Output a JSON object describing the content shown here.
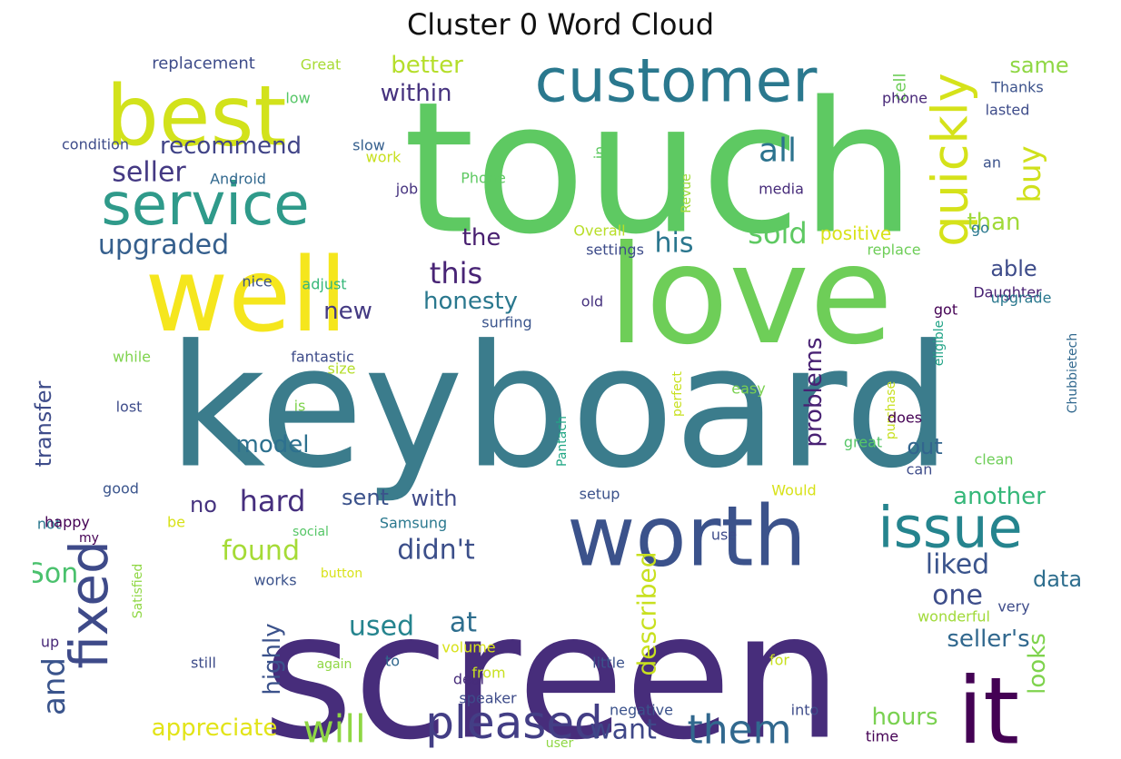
{
  "title": "Cluster 0 Word Cloud",
  "colors": {
    "background": "#ffffff",
    "title": "#111111"
  },
  "words": [
    {
      "text": "touch",
      "color": "#5ec962",
      "vertical": false
    },
    {
      "text": "keyboard",
      "color": "#3b7c8c",
      "vertical": false
    },
    {
      "text": "screen",
      "color": "#472d7b",
      "vertical": false
    },
    {
      "text": "love",
      "color": "#6ece58",
      "vertical": false
    },
    {
      "text": "well",
      "color": "#f5e61d",
      "vertical": false
    },
    {
      "text": "best",
      "color": "#d2e21b",
      "vertical": false
    },
    {
      "text": "worth",
      "color": "#3b528b",
      "vertical": false
    },
    {
      "text": "customer",
      "color": "#2a788e",
      "vertical": false
    },
    {
      "text": "service",
      "color": "#2f9a8a",
      "vertical": false
    },
    {
      "text": "issue",
      "color": "#25848e",
      "vertical": false
    },
    {
      "text": "it",
      "color": "#440154",
      "vertical": false
    },
    {
      "text": "quickly",
      "color": "#d5e21a",
      "vertical": true
    },
    {
      "text": "fixed",
      "color": "#3e4a89",
      "vertical": true
    },
    {
      "text": "pleased",
      "color": "#433e85",
      "vertical": false
    },
    {
      "text": "will",
      "color": "#8fd744",
      "vertical": false
    },
    {
      "text": "them",
      "color": "#31688e",
      "vertical": false
    },
    {
      "text": "and",
      "color": "#3a548c",
      "vertical": true
    },
    {
      "text": "buy",
      "color": "#d0e11c",
      "vertical": true
    },
    {
      "text": "all",
      "color": "#2c738e",
      "vertical": false
    },
    {
      "text": "this",
      "color": "#482475",
      "vertical": false
    },
    {
      "text": "seller",
      "color": "#443983",
      "vertical": false
    },
    {
      "text": "upgraded",
      "color": "#355f8d",
      "vertical": false
    },
    {
      "text": "sold",
      "color": "#5ec962",
      "vertical": false
    },
    {
      "text": "his",
      "color": "#2a768e",
      "vertical": false
    },
    {
      "text": "hard",
      "color": "#462f7e",
      "vertical": false
    },
    {
      "text": "found",
      "color": "#a5db36",
      "vertical": false
    },
    {
      "text": "didn't",
      "color": "#3c4f8a",
      "vertical": false
    },
    {
      "text": "Son",
      "color": "#4ac16d",
      "vertical": false
    },
    {
      "text": "used",
      "color": "#25848e",
      "vertical": false
    },
    {
      "text": "at",
      "color": "#2e6e8e",
      "vertical": false
    },
    {
      "text": "want",
      "color": "#3f4788",
      "vertical": false
    },
    {
      "text": "appreciate",
      "color": "#e2e418",
      "vertical": false
    },
    {
      "text": "liked",
      "color": "#3a548c",
      "vertical": false
    },
    {
      "text": "one",
      "color": "#3d4d8a",
      "vertical": false
    },
    {
      "text": "seller's",
      "color": "#31688e",
      "vertical": false
    },
    {
      "text": "recommend",
      "color": "#414487",
      "vertical": false
    },
    {
      "text": "within",
      "color": "#46327e",
      "vertical": false
    },
    {
      "text": "better",
      "color": "#b5de2b",
      "vertical": false
    },
    {
      "text": "honesty",
      "color": "#2a788e",
      "vertical": false
    },
    {
      "text": "model",
      "color": "#2d708e",
      "vertical": false
    },
    {
      "text": "problems",
      "color": "#482173",
      "vertical": true
    },
    {
      "text": "described",
      "color": "#c8e020",
      "vertical": true
    },
    {
      "text": "highly",
      "color": "#3b528b",
      "vertical": true
    },
    {
      "text": "hours",
      "color": "#7ad151",
      "vertical": false
    },
    {
      "text": "another",
      "color": "#35b779",
      "vertical": false
    },
    {
      "text": "looks",
      "color": "#7fd34e",
      "vertical": true
    },
    {
      "text": "data",
      "color": "#2e6e8e",
      "vertical": false
    },
    {
      "text": "the",
      "color": "#481f70",
      "vertical": false
    },
    {
      "text": "than",
      "color": "#a0da39",
      "vertical": false
    },
    {
      "text": "able",
      "color": "#3e4c8a",
      "vertical": false
    },
    {
      "text": "out",
      "color": "#32658e",
      "vertical": false
    },
    {
      "text": "same",
      "color": "#8fd744",
      "vertical": false
    },
    {
      "text": "with",
      "color": "#3e4989",
      "vertical": false
    },
    {
      "text": "sent",
      "color": "#3b528b",
      "vertical": false
    },
    {
      "text": "no",
      "color": "#46337f",
      "vertical": false
    },
    {
      "text": "new",
      "color": "#443a83",
      "vertical": false
    },
    {
      "text": "transfer",
      "color": "#3e4c8a",
      "vertical": true
    },
    {
      "text": "positive",
      "color": "#d8e219",
      "vertical": false
    },
    {
      "text": "replacement",
      "color": "#3e4c8a",
      "vertical": false
    },
    {
      "text": "Great",
      "color": "#a8db34",
      "vertical": false
    },
    {
      "text": "low",
      "color": "#56c667",
      "vertical": false
    },
    {
      "text": "condition",
      "color": "#3e4c8a",
      "vertical": false
    },
    {
      "text": "slow",
      "color": "#355f8d",
      "vertical": false
    },
    {
      "text": "work",
      "color": "#c8e020",
      "vertical": false
    },
    {
      "text": "in",
      "color": "#5ec962",
      "vertical": true
    },
    {
      "text": "Android",
      "color": "#31688e",
      "vertical": false
    },
    {
      "text": "Phone",
      "color": "#5ec962",
      "vertical": false
    },
    {
      "text": "job",
      "color": "#46337f",
      "vertical": false
    },
    {
      "text": "Revue",
      "color": "#a0da39",
      "vertical": true
    },
    {
      "text": "media",
      "color": "#472c7a",
      "vertical": false
    },
    {
      "text": "cell",
      "color": "#6ece58",
      "vertical": true
    },
    {
      "text": "phone",
      "color": "#482878",
      "vertical": false
    },
    {
      "text": "Thanks",
      "color": "#3b528b",
      "vertical": false
    },
    {
      "text": "lasted",
      "color": "#3e4c8a",
      "vertical": false
    },
    {
      "text": "an",
      "color": "#3b528b",
      "vertical": false
    },
    {
      "text": "go",
      "color": "#2a788e",
      "vertical": false
    },
    {
      "text": "got",
      "color": "#440154",
      "vertical": false
    },
    {
      "text": "Daughter",
      "color": "#482173",
      "vertical": false
    },
    {
      "text": "Overall",
      "color": "#b8de29",
      "vertical": false
    },
    {
      "text": "settings",
      "color": "#3e4c8a",
      "vertical": false
    },
    {
      "text": "replace",
      "color": "#6ece58",
      "vertical": false
    },
    {
      "text": "old",
      "color": "#46327e",
      "vertical": false
    },
    {
      "text": "adjust",
      "color": "#35b779",
      "vertical": false
    },
    {
      "text": "nice",
      "color": "#3b528b",
      "vertical": false
    },
    {
      "text": "surfing",
      "color": "#3a548c",
      "vertical": false
    },
    {
      "text": "upgrade",
      "color": "#2a788e",
      "vertical": false
    },
    {
      "text": "Chubbietech",
      "color": "#31688e",
      "vertical": true
    },
    {
      "text": "eligible",
      "color": "#20a386",
      "vertical": true
    },
    {
      "text": "while",
      "color": "#7fd34e",
      "vertical": false
    },
    {
      "text": "fantastic",
      "color": "#3e4c8a",
      "vertical": false
    },
    {
      "text": "size",
      "color": "#b5de2b",
      "vertical": false
    },
    {
      "text": "lost",
      "color": "#3e4c8a",
      "vertical": false
    },
    {
      "text": "is",
      "color": "#7fd34e",
      "vertical": false
    },
    {
      "text": "perfect",
      "color": "#c8e020",
      "vertical": true
    },
    {
      "text": "Pantach",
      "color": "#22a785",
      "vertical": true
    },
    {
      "text": "easy",
      "color": "#7ad151",
      "vertical": false
    },
    {
      "text": "purchase",
      "color": "#c8e020",
      "vertical": true
    },
    {
      "text": "great",
      "color": "#56c667",
      "vertical": false
    },
    {
      "text": "does",
      "color": "#440154",
      "vertical": false
    },
    {
      "text": "clean",
      "color": "#6ece58",
      "vertical": false
    },
    {
      "text": "can",
      "color": "#3e4c8a",
      "vertical": false
    },
    {
      "text": "not",
      "color": "#2a788e",
      "vertical": false
    },
    {
      "text": "good",
      "color": "#3a548c",
      "vertical": false
    },
    {
      "text": "happy",
      "color": "#440154",
      "vertical": false
    },
    {
      "text": "be",
      "color": "#d8e219",
      "vertical": false
    },
    {
      "text": "my",
      "color": "#440154",
      "vertical": false
    },
    {
      "text": "social",
      "color": "#56c667",
      "vertical": false
    },
    {
      "text": "Samsung",
      "color": "#2a788e",
      "vertical": false
    },
    {
      "text": "setup",
      "color": "#3b528b",
      "vertical": false
    },
    {
      "text": "Would",
      "color": "#d8e219",
      "vertical": false
    },
    {
      "text": "use",
      "color": "#3e4c8a",
      "vertical": false
    },
    {
      "text": "works",
      "color": "#3b528b",
      "vertical": false
    },
    {
      "text": "button",
      "color": "#d8e219",
      "vertical": false
    },
    {
      "text": "Satisfied",
      "color": "#8fd744",
      "vertical": true
    },
    {
      "text": "very",
      "color": "#3e4c8a",
      "vertical": false
    },
    {
      "text": "wonderful",
      "color": "#a0da39",
      "vertical": false
    },
    {
      "text": "up",
      "color": "#482878",
      "vertical": false
    },
    {
      "text": "still",
      "color": "#3e4c8a",
      "vertical": false
    },
    {
      "text": "again",
      "color": "#8fd744",
      "vertical": false
    },
    {
      "text": "to",
      "color": "#31688e",
      "vertical": false
    },
    {
      "text": "volume",
      "color": "#d8e219",
      "vertical": false
    },
    {
      "text": "little",
      "color": "#3b528b",
      "vertical": false
    },
    {
      "text": "for",
      "color": "#c8e020",
      "vertical": false
    },
    {
      "text": "deal",
      "color": "#472c7a",
      "vertical": false
    },
    {
      "text": "from",
      "color": "#c8e020",
      "vertical": false
    },
    {
      "text": "speaker",
      "color": "#3e4c8a",
      "vertical": false
    },
    {
      "text": "negative",
      "color": "#3b528b",
      "vertical": false
    },
    {
      "text": "into",
      "color": "#3e4c8a",
      "vertical": false
    },
    {
      "text": "time",
      "color": "#440154",
      "vertical": false
    },
    {
      "text": "user",
      "color": "#8fd744",
      "vertical": false
    }
  ]
}
